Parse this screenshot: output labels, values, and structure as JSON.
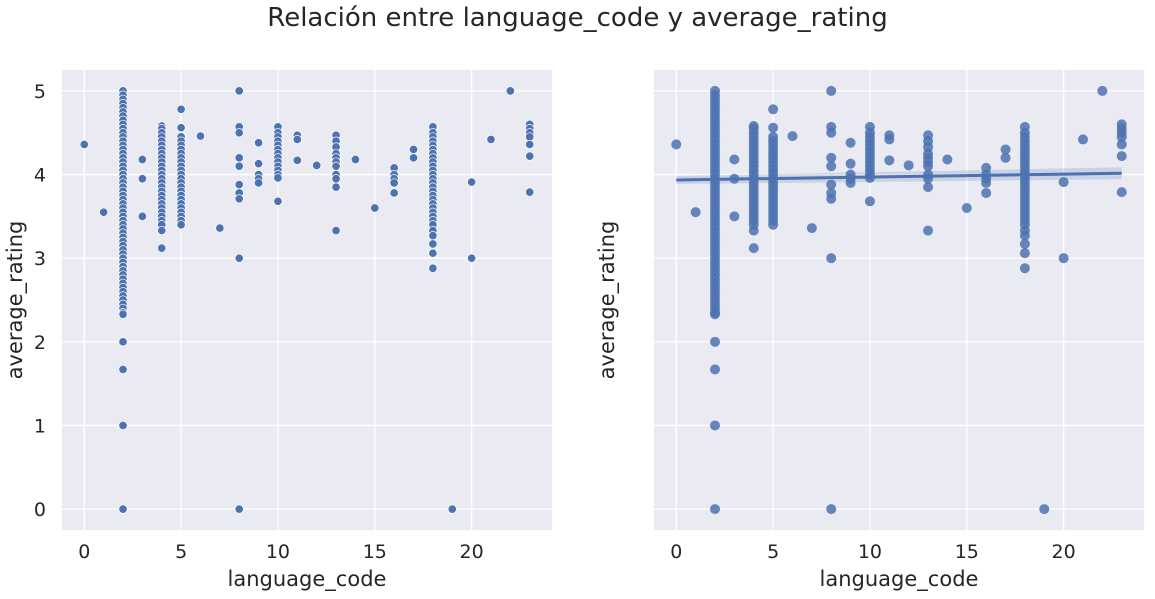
{
  "figure": {
    "title": "Relación entre language_code y average_rating"
  },
  "colors": {
    "panel_bg": "#eaeaf2",
    "grid": "#ffffff",
    "point": "#4c72b0",
    "regression_line": "#4c72b0"
  },
  "chart_data": [
    {
      "type": "scatter",
      "xlabel": "language_code",
      "ylabel": "average_rating",
      "xlim": [
        -1.15,
        24.15
      ],
      "ylim": [
        -0.25,
        5.25
      ],
      "xticks": [
        0,
        5,
        10,
        15,
        20
      ],
      "yticks": [
        0,
        1,
        2,
        3,
        4,
        5
      ],
      "show_yticklabels": true,
      "grid": true,
      "regression": null,
      "points": [
        [
          0,
          4.36
        ],
        [
          1,
          3.55
        ],
        [
          2,
          5.0
        ],
        [
          2,
          4.95
        ],
        [
          2,
          4.9
        ],
        [
          2,
          4.85
        ],
        [
          2,
          4.8
        ],
        [
          2,
          4.75
        ],
        [
          2,
          4.7
        ],
        [
          2,
          4.65
        ],
        [
          2,
          4.6
        ],
        [
          2,
          4.55
        ],
        [
          2,
          4.5
        ],
        [
          2,
          4.45
        ],
        [
          2,
          4.4
        ],
        [
          2,
          4.35
        ],
        [
          2,
          4.3
        ],
        [
          2,
          4.25
        ],
        [
          2,
          4.2
        ],
        [
          2,
          4.15
        ],
        [
          2,
          4.1
        ],
        [
          2,
          4.05
        ],
        [
          2,
          4.0
        ],
        [
          2,
          3.95
        ],
        [
          2,
          3.9
        ],
        [
          2,
          3.85
        ],
        [
          2,
          3.8
        ],
        [
          2,
          3.75
        ],
        [
          2,
          3.7
        ],
        [
          2,
          3.65
        ],
        [
          2,
          3.6
        ],
        [
          2,
          3.55
        ],
        [
          2,
          3.5
        ],
        [
          2,
          3.45
        ],
        [
          2,
          3.4
        ],
        [
          2,
          3.35
        ],
        [
          2,
          3.3
        ],
        [
          2,
          3.25
        ],
        [
          2,
          3.2
        ],
        [
          2,
          3.15
        ],
        [
          2,
          3.1
        ],
        [
          2,
          3.05
        ],
        [
          2,
          3.0
        ],
        [
          2,
          2.95
        ],
        [
          2,
          2.9
        ],
        [
          2,
          2.85
        ],
        [
          2,
          2.8
        ],
        [
          2,
          2.75
        ],
        [
          2,
          2.7
        ],
        [
          2,
          2.65
        ],
        [
          2,
          2.6
        ],
        [
          2,
          2.55
        ],
        [
          2,
          2.5
        ],
        [
          2,
          2.45
        ],
        [
          2,
          2.4
        ],
        [
          2,
          2.35
        ],
        [
          2,
          2.33
        ],
        [
          2,
          2.0
        ],
        [
          2,
          1.67
        ],
        [
          2,
          1.0
        ],
        [
          2,
          0.0
        ],
        [
          3,
          4.18
        ],
        [
          3,
          3.95
        ],
        [
          3,
          3.5
        ],
        [
          4,
          4.58
        ],
        [
          4,
          4.55
        ],
        [
          4,
          4.5
        ],
        [
          4,
          4.45
        ],
        [
          4,
          4.4
        ],
        [
          4,
          4.35
        ],
        [
          4,
          4.3
        ],
        [
          4,
          4.25
        ],
        [
          4,
          4.2
        ],
        [
          4,
          4.15
        ],
        [
          4,
          4.1
        ],
        [
          4,
          4.05
        ],
        [
          4,
          4.0
        ],
        [
          4,
          3.95
        ],
        [
          4,
          3.9
        ],
        [
          4,
          3.85
        ],
        [
          4,
          3.8
        ],
        [
          4,
          3.75
        ],
        [
          4,
          3.7
        ],
        [
          4,
          3.65
        ],
        [
          4,
          3.6
        ],
        [
          4,
          3.55
        ],
        [
          4,
          3.5
        ],
        [
          4,
          3.45
        ],
        [
          4,
          3.4
        ],
        [
          4,
          3.33
        ],
        [
          4,
          3.12
        ],
        [
          5,
          4.78
        ],
        [
          5,
          4.56
        ],
        [
          5,
          4.45
        ],
        [
          5,
          4.4
        ],
        [
          5,
          4.35
        ],
        [
          5,
          4.3
        ],
        [
          5,
          4.25
        ],
        [
          5,
          4.2
        ],
        [
          5,
          4.15
        ],
        [
          5,
          4.1
        ],
        [
          5,
          4.05
        ],
        [
          5,
          4.0
        ],
        [
          5,
          3.95
        ],
        [
          5,
          3.9
        ],
        [
          5,
          3.85
        ],
        [
          5,
          3.8
        ],
        [
          5,
          3.75
        ],
        [
          5,
          3.7
        ],
        [
          5,
          3.65
        ],
        [
          5,
          3.6
        ],
        [
          5,
          3.55
        ],
        [
          5,
          3.5
        ],
        [
          5,
          3.45
        ],
        [
          5,
          3.4
        ],
        [
          6,
          4.46
        ],
        [
          7,
          3.36
        ],
        [
          8,
          5.0
        ],
        [
          8,
          4.57
        ],
        [
          8,
          4.5
        ],
        [
          8,
          4.2
        ],
        [
          8,
          4.1
        ],
        [
          8,
          3.88
        ],
        [
          8,
          3.78
        ],
        [
          8,
          3.71
        ],
        [
          8,
          3.0
        ],
        [
          8,
          0.0
        ],
        [
          9,
          4.38
        ],
        [
          9,
          4.13
        ],
        [
          9,
          4.0
        ],
        [
          9,
          3.95
        ],
        [
          9,
          3.9
        ],
        [
          10,
          4.57
        ],
        [
          10,
          4.5
        ],
        [
          10,
          4.45
        ],
        [
          10,
          4.4
        ],
        [
          10,
          4.35
        ],
        [
          10,
          4.3
        ],
        [
          10,
          4.25
        ],
        [
          10,
          4.2
        ],
        [
          10,
          4.15
        ],
        [
          10,
          4.1
        ],
        [
          10,
          4.05
        ],
        [
          10,
          4.0
        ],
        [
          10,
          3.96
        ],
        [
          10,
          3.68
        ],
        [
          11,
          4.47
        ],
        [
          11,
          4.42
        ],
        [
          11,
          4.17
        ],
        [
          12,
          4.11
        ],
        [
          13,
          4.47
        ],
        [
          13,
          4.4
        ],
        [
          13,
          4.33
        ],
        [
          13,
          4.25
        ],
        [
          13,
          4.2
        ],
        [
          13,
          4.15
        ],
        [
          13,
          4.1
        ],
        [
          13,
          4.0
        ],
        [
          13,
          3.95
        ],
        [
          13,
          3.85
        ],
        [
          13,
          3.33
        ],
        [
          14,
          4.18
        ],
        [
          15,
          3.6
        ],
        [
          16,
          4.08
        ],
        [
          16,
          4.0
        ],
        [
          16,
          3.95
        ],
        [
          16,
          3.9
        ],
        [
          16,
          3.78
        ],
        [
          17,
          4.3
        ],
        [
          17,
          4.2
        ],
        [
          18,
          4.57
        ],
        [
          18,
          4.5
        ],
        [
          18,
          4.45
        ],
        [
          18,
          4.4
        ],
        [
          18,
          4.35
        ],
        [
          18,
          4.3
        ],
        [
          18,
          4.25
        ],
        [
          18,
          4.2
        ],
        [
          18,
          4.15
        ],
        [
          18,
          4.1
        ],
        [
          18,
          4.05
        ],
        [
          18,
          4.0
        ],
        [
          18,
          3.95
        ],
        [
          18,
          3.9
        ],
        [
          18,
          3.85
        ],
        [
          18,
          3.8
        ],
        [
          18,
          3.75
        ],
        [
          18,
          3.7
        ],
        [
          18,
          3.65
        ],
        [
          18,
          3.6
        ],
        [
          18,
          3.55
        ],
        [
          18,
          3.5
        ],
        [
          18,
          3.45
        ],
        [
          18,
          3.4
        ],
        [
          18,
          3.33
        ],
        [
          18,
          3.27
        ],
        [
          18,
          3.17
        ],
        [
          18,
          3.06
        ],
        [
          18,
          2.88
        ],
        [
          19,
          0.0
        ],
        [
          20,
          3.91
        ],
        [
          20,
          3.0
        ],
        [
          21,
          4.42
        ],
        [
          22,
          5.0
        ],
        [
          23,
          4.6
        ],
        [
          23,
          4.55
        ],
        [
          23,
          4.5
        ],
        [
          23,
          4.45
        ],
        [
          23,
          4.36
        ],
        [
          23,
          4.22
        ],
        [
          23,
          3.79
        ]
      ]
    },
    {
      "type": "scatter",
      "xlabel": "language_code",
      "ylabel": "average_rating",
      "xlim": [
        -1.15,
        24.15
      ],
      "ylim": [
        -0.25,
        5.25
      ],
      "xticks": [
        0,
        5,
        10,
        15,
        20
      ],
      "yticks": [
        0,
        1,
        2,
        3,
        4,
        5
      ],
      "show_yticklabels": false,
      "grid": true,
      "regression": {
        "x": [
          0,
          23
        ],
        "y": [
          3.935,
          4.015
        ]
      },
      "points": "same_as_panel_0"
    }
  ]
}
